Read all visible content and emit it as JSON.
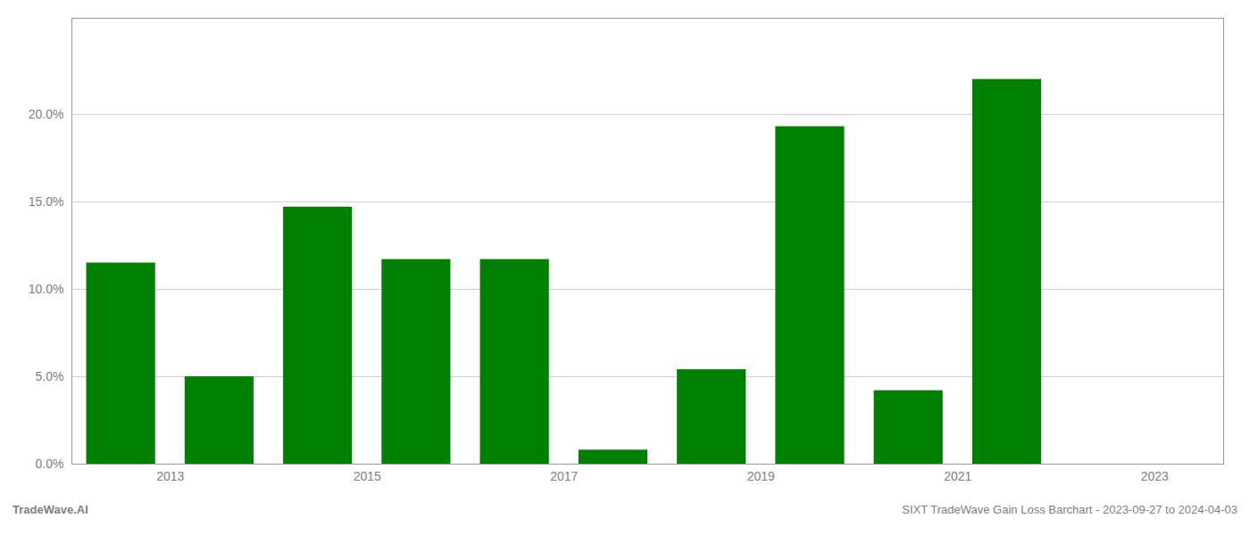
{
  "chart_data": {
    "type": "bar",
    "x": [
      2013,
      2014,
      2015,
      2016,
      2017,
      2018,
      2019,
      2020,
      2021,
      2022,
      2023
    ],
    "values": [
      0.115,
      0.05,
      0.147,
      0.117,
      0.117,
      0.008,
      0.054,
      0.193,
      0.042,
      0.22,
      null
    ],
    "color": "#008000",
    "xlim": [
      2012.5,
      2024.2
    ],
    "xticks": [
      {
        "value": 2013.5,
        "label": "2013"
      },
      {
        "value": 2015.5,
        "label": "2015"
      },
      {
        "value": 2017.5,
        "label": "2017"
      },
      {
        "value": 2019.5,
        "label": "2019"
      },
      {
        "value": 2021.5,
        "label": "2021"
      },
      {
        "value": 2023.5,
        "label": "2023"
      }
    ],
    "ylim": [
      0,
      0.255
    ],
    "yticks": [
      {
        "value": 0.0,
        "label": "0.0%"
      },
      {
        "value": 0.05,
        "label": "5.0%"
      },
      {
        "value": 0.1,
        "label": "10.0%"
      },
      {
        "value": 0.15,
        "label": "15.0%"
      },
      {
        "value": 0.2,
        "label": "20.0%"
      }
    ],
    "grid": true,
    "annotations": [
      "TradeWave.AI",
      "SIXT TradeWave Gain Loss Barchart - 2023-09-27 to 2024-04-03"
    ]
  }
}
